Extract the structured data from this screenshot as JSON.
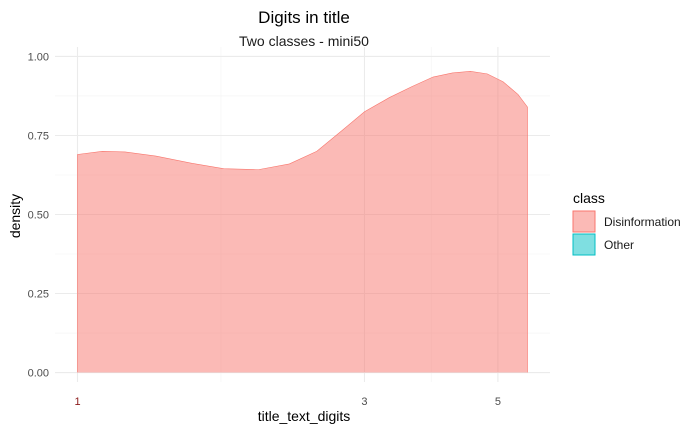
{
  "chart_data": {
    "type": "area",
    "title": "Digits in title",
    "subtitle": "Two classes - mini50",
    "xlabel": "title_text_digits",
    "ylabel": "density",
    "x_scale": "log10",
    "xlim": [
      1,
      5.6
    ],
    "ylim": [
      0,
      1.0
    ],
    "x_ticks": [
      1,
      3,
      5
    ],
    "y_ticks": [
      0.0,
      0.25,
      0.5,
      0.75,
      1.0
    ],
    "y_tick_labels": [
      "0.00",
      "0.25",
      "0.50",
      "0.75",
      "1.00"
    ],
    "grid": true,
    "legend": {
      "title": "class",
      "position": "right",
      "entries": [
        {
          "label": "Disinformation",
          "fill": "#F8766D",
          "stroke": "#F8766D"
        },
        {
          "label": "Other",
          "fill": "#00BFC4",
          "stroke": "#00BFC4"
        }
      ]
    },
    "series": [
      {
        "name": "Disinformation",
        "color": "#F8766D",
        "x": [
          1.0,
          1.1,
          1.2,
          1.35,
          1.55,
          1.75,
          2.0,
          2.25,
          2.5,
          2.75,
          3.0,
          3.3,
          3.6,
          3.9,
          4.2,
          4.5,
          4.8,
          5.1,
          5.4,
          5.6
        ],
        "y": [
          0.69,
          0.7,
          0.698,
          0.685,
          0.662,
          0.645,
          0.642,
          0.66,
          0.7,
          0.765,
          0.825,
          0.87,
          0.905,
          0.935,
          0.948,
          0.953,
          0.945,
          0.92,
          0.88,
          0.84
        ]
      },
      {
        "name": "Other",
        "color": "#00BFC4",
        "x": [],
        "y": []
      }
    ]
  }
}
